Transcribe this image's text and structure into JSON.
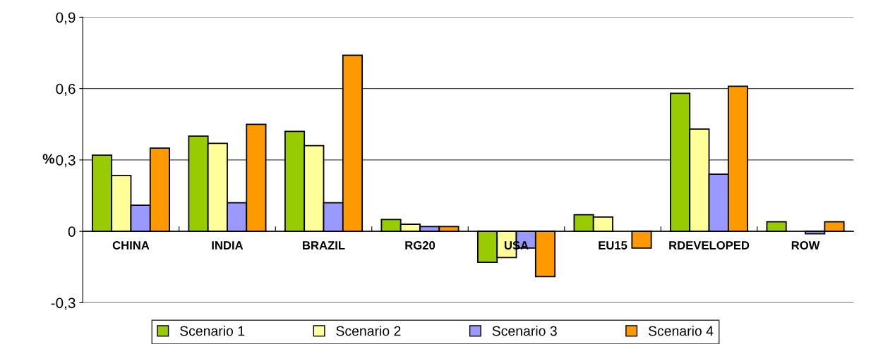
{
  "chart_data": {
    "type": "bar",
    "ylabel": "%",
    "categories": [
      "CHINA",
      "INDIA",
      "BRAZIL",
      "RG20",
      "USA",
      "EU15",
      "RDEVELOPED",
      "ROW"
    ],
    "series": [
      {
        "name": "Scenario 1",
        "color": "#99cc00",
        "values": [
          0.32,
          0.4,
          0.42,
          0.05,
          -0.13,
          0.07,
          0.58,
          0.04
        ]
      },
      {
        "name": "Scenario 2",
        "color": "#ffff99",
        "values": [
          0.235,
          0.37,
          0.36,
          0.03,
          -0.11,
          0.06,
          0.43,
          null
        ]
      },
      {
        "name": "Scenario 3",
        "color": "#9999ff",
        "values": [
          0.11,
          0.12,
          0.12,
          0.02,
          -0.07,
          null,
          0.24,
          -0.01
        ]
      },
      {
        "name": "Scenario 4",
        "color": "#ff9900",
        "values": [
          0.35,
          0.45,
          0.74,
          0.02,
          -0.19,
          -0.07,
          0.61,
          0.04
        ]
      }
    ],
    "ylim": [
      -0.3,
      0.9
    ],
    "yticks": [
      {
        "value": -0.3,
        "label": "-0,3"
      },
      {
        "value": 0,
        "label": "0"
      },
      {
        "value": 0.3,
        "label": "0,3"
      },
      {
        "value": 0.6,
        "label": "0,6"
      },
      {
        "value": 0.9,
        "label": "0,9"
      }
    ],
    "grid": "y",
    "legend": "bottom"
  }
}
